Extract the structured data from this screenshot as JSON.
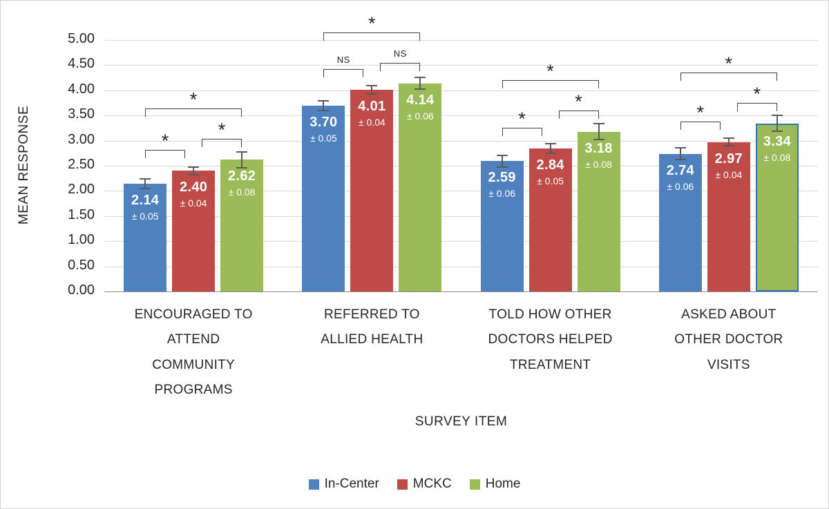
{
  "chart_data": {
    "type": "bar",
    "title": "",
    "xlabel": "SURVEY ITEM",
    "ylabel": "MEAN RESPONSE",
    "ylim": [
      0,
      5
    ],
    "ytick_step": 0.5,
    "ytick_labels": [
      "5.00",
      "4.50",
      "4.00",
      "3.50",
      "3.00",
      "2.50",
      "2.00",
      "1.50",
      "1.00",
      "0.50",
      "0.00"
    ],
    "grid": true,
    "gridline_color": "#D9D9D9",
    "axis_line_color": "#8C8C8C",
    "error_bar_color": "#595959",
    "bracket_color": "#404040",
    "legend_position": "bottom",
    "categories": [
      "ENCOURAGED TO\nATTEND\nCOMMUNITY\nPROGRAMS",
      "REFERRED TO\nALLIED HEALTH",
      "TOLD HOW OTHER\nDOCTORS HELPED\nTREATMENT",
      "ASKED ABOUT\nOTHER DOCTOR\nVISITS"
    ],
    "series": [
      {
        "name": "In-Center",
        "color": "#4E81BD",
        "values": [
          2.14,
          3.7,
          2.59,
          2.74
        ],
        "errors": [
          0.05,
          0.05,
          0.06,
          0.06
        ]
      },
      {
        "name": "MCKC",
        "color": "#BE4B48",
        "values": [
          2.4,
          4.01,
          2.84,
          2.97
        ],
        "errors": [
          0.04,
          0.04,
          0.05,
          0.04
        ]
      },
      {
        "name": "Home",
        "color": "#9BBB59",
        "values": [
          2.62,
          4.14,
          3.18,
          3.34
        ],
        "errors": [
          0.08,
          0.06,
          0.08,
          0.08
        ]
      }
    ],
    "error_label_prefix": "±",
    "highlighted_bar": {
      "category_index": 3,
      "series_index": 2,
      "outline_color": "#2E75B6"
    },
    "significance_brackets": [
      {
        "category_index": 0,
        "pairs": [
          {
            "from": 0,
            "to": 1,
            "label": "*"
          },
          {
            "from": 1,
            "to": 2,
            "label": "*"
          },
          {
            "from": 0,
            "to": 2,
            "label": "*"
          }
        ]
      },
      {
        "category_index": 1,
        "pairs": [
          {
            "from": 0,
            "to": 1,
            "label": "NS"
          },
          {
            "from": 1,
            "to": 2,
            "label": "NS"
          },
          {
            "from": 0,
            "to": 2,
            "label": "*"
          }
        ]
      },
      {
        "category_index": 2,
        "pairs": [
          {
            "from": 0,
            "to": 1,
            "label": "*"
          },
          {
            "from": 1,
            "to": 2,
            "label": "*"
          },
          {
            "from": 0,
            "to": 2,
            "label": "*"
          }
        ]
      },
      {
        "category_index": 3,
        "pairs": [
          {
            "from": 0,
            "to": 1,
            "label": "*"
          },
          {
            "from": 1,
            "to": 2,
            "label": "*"
          },
          {
            "from": 0,
            "to": 2,
            "label": "*"
          }
        ]
      }
    ]
  }
}
